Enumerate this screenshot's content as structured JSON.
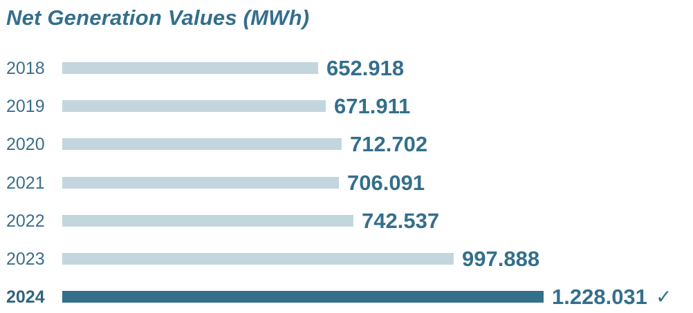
{
  "chart_data": {
    "type": "bar",
    "orientation": "horizontal",
    "title": "Net Generation Values (MWh)",
    "categories": [
      "2018",
      "2019",
      "2020",
      "2021",
      "2022",
      "2023",
      "2024"
    ],
    "values": [
      652918,
      671911,
      712702,
      706091,
      742537,
      997888,
      1228031
    ],
    "value_labels": [
      "652.918",
      "671.911",
      "712.702",
      "706.091",
      "742.537",
      "997.888",
      "1.228.031"
    ],
    "highlight_index": 6,
    "highlight_marker": "✓",
    "xlim": [
      0,
      1228031
    ],
    "colors": {
      "bar": "#c3d6dd",
      "highlight": "#346f8c",
      "text": "#346f8c"
    }
  }
}
